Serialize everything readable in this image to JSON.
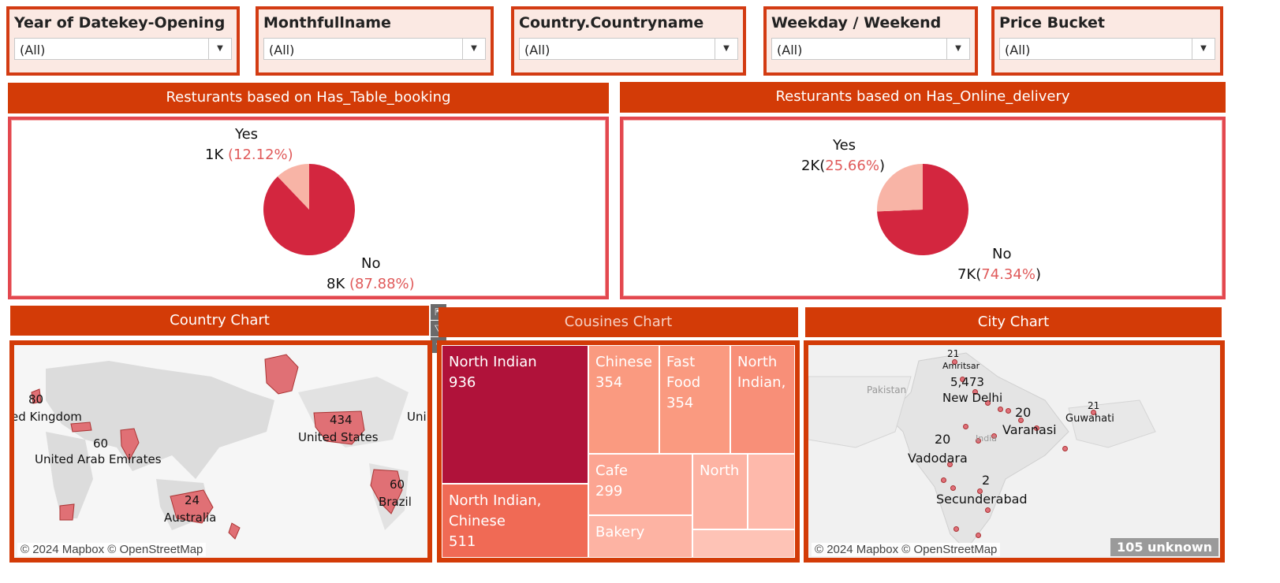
{
  "filters": [
    {
      "label": "Year of Datekey-Opening",
      "value": "(All)"
    },
    {
      "label": "Monthfullname",
      "value": "(All)"
    },
    {
      "label": "Country.Countryname",
      "value": "(All)"
    },
    {
      "label": "Weekday / Weekend",
      "value": "(All)"
    },
    {
      "label": "Price Bucket",
      "value": "(All)"
    }
  ],
  "table_booking": {
    "title": "Resturants based on Has_Table_booking",
    "yes_label": "Yes",
    "yes_value": "1K",
    "yes_pct": "(12.12%)",
    "yes_share": 12.12,
    "no_label": "No",
    "no_value": "8K",
    "no_pct": "(87.88%)",
    "no_share": 87.88
  },
  "online_delivery": {
    "title": "Resturants based on Has_Online_delivery",
    "yes_label": "Yes",
    "yes_value": "2K",
    "yes_open": "(",
    "yes_pct": "25.66%",
    "yes_close": ")",
    "yes_share": 25.66,
    "no_label": "No",
    "no_value": "7K",
    "no_open": "(",
    "no_pct": "74.34%",
    "no_close": ")",
    "no_share": 74.34
  },
  "colors": {
    "slice_main": "#d3263f",
    "slice_minor": "#f8b4a6",
    "accent": "#d33b07"
  },
  "country_chart": {
    "title": "Country Chart",
    "labels": [
      "80",
      "ed Kingdom",
      "60",
      "United Arab Emirates",
      "434",
      "United States",
      "Uni",
      "24",
      "Australia",
      "60",
      "Brazil"
    ],
    "attribution": "© 2024 Mapbox © OpenStreetMap"
  },
  "cuisines_chart": {
    "title": "Cousines Chart",
    "cells": [
      {
        "name": "North Indian",
        "value": "936"
      },
      {
        "name": "North Indian, Chinese",
        "value": "511"
      },
      {
        "name": "Chinese",
        "value": "354"
      },
      {
        "name": "Fast Food",
        "value": "354"
      },
      {
        "name": "North Indian,",
        "value": ""
      },
      {
        "name": "Cafe",
        "value": "299"
      },
      {
        "name": "North",
        "value": ""
      },
      {
        "name": "Bakery",
        "value": ""
      }
    ]
  },
  "city_chart": {
    "title": "City Chart",
    "labels": [
      "21",
      "Amritsar",
      "5,473",
      "New Delhi",
      "20",
      "Varanasi",
      "21",
      "Guwahati",
      "20",
      "Vadodara",
      "2",
      "Secunderabad",
      "Pakistan",
      "India"
    ],
    "attribution": "© 2024 Mapbox © OpenStreetMap",
    "unknown": "105 unknown"
  },
  "tools": {
    "expand": "⇱",
    "filter": "⧩",
    "more": "▾"
  }
}
